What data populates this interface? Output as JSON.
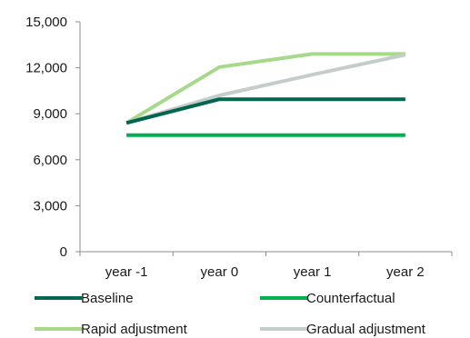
{
  "chart_data": {
    "type": "line",
    "categories": [
      "year -1",
      "year 0",
      "year 1",
      "year 2"
    ],
    "ylim": [
      0,
      15000
    ],
    "yticks": [
      0,
      3000,
      6000,
      9000,
      12000,
      15000
    ],
    "ytick_labels": [
      "0",
      "3,000",
      "6,000",
      "9,000",
      "12,000",
      "15,000"
    ],
    "grid": false,
    "legend_position": "bottom",
    "series": [
      {
        "name": "Baseline",
        "color": "#00664f",
        "values": [
          8400,
          9950,
          9950,
          9950
        ]
      },
      {
        "name": "Counterfactual",
        "color": "#00b050",
        "values": [
          7600,
          7600,
          7600,
          7600
        ]
      },
      {
        "name": "Rapid adjustment",
        "color": "#a6d98a",
        "values": [
          8400,
          12050,
          12900,
          12900
        ]
      },
      {
        "name": "Gradual adjustment",
        "color": "#c3cec9",
        "values": [
          8400,
          10200,
          11550,
          12850
        ]
      }
    ],
    "draw_order": [
      2,
      3,
      0,
      1
    ]
  }
}
